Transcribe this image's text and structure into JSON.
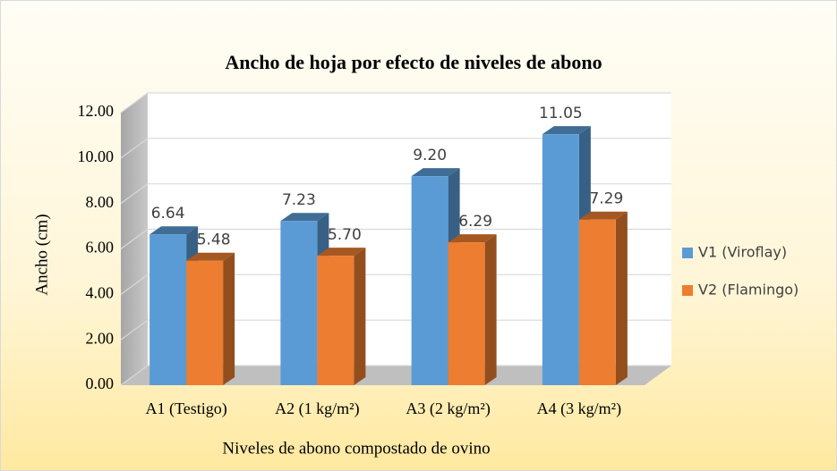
{
  "chart_data": {
    "type": "bar",
    "title": "Ancho de hoja por efecto de niveles de abono",
    "x_label": "Niveles de abono compostado de ovino",
    "y_label": "Ancho (cm)",
    "categories": [
      "A1 (Testigo)",
      "A2 (1 kg/m²)",
      "A3 (2 kg/m²)",
      "A4 (3 kg/m²)"
    ],
    "series": [
      {
        "name": "V1 (Viroflay)",
        "color": "#5b9bd5",
        "values": [
          6.64,
          7.23,
          9.2,
          11.05
        ],
        "value_labels": [
          "6.64",
          "7.23",
          "9.20",
          "11.05"
        ]
      },
      {
        "name": "V2 (Flamingo)",
        "color": "#ed7d31",
        "values": [
          5.48,
          5.7,
          6.29,
          7.29
        ],
        "value_labels": [
          "5.48",
          "5.70",
          "6.29",
          "7.29"
        ]
      }
    ],
    "ylim": [
      0,
      12
    ],
    "yticks": [
      {
        "value": 0,
        "label": "0.00"
      },
      {
        "value": 2,
        "label": "2.00"
      },
      {
        "value": 4,
        "label": "4.00"
      },
      {
        "value": 6,
        "label": "6.00"
      },
      {
        "value": 8,
        "label": "8.00"
      },
      {
        "value": 10,
        "label": "10.00"
      },
      {
        "value": 12,
        "label": "12.00"
      }
    ],
    "grid": true,
    "legend": "right",
    "three_d": true
  }
}
